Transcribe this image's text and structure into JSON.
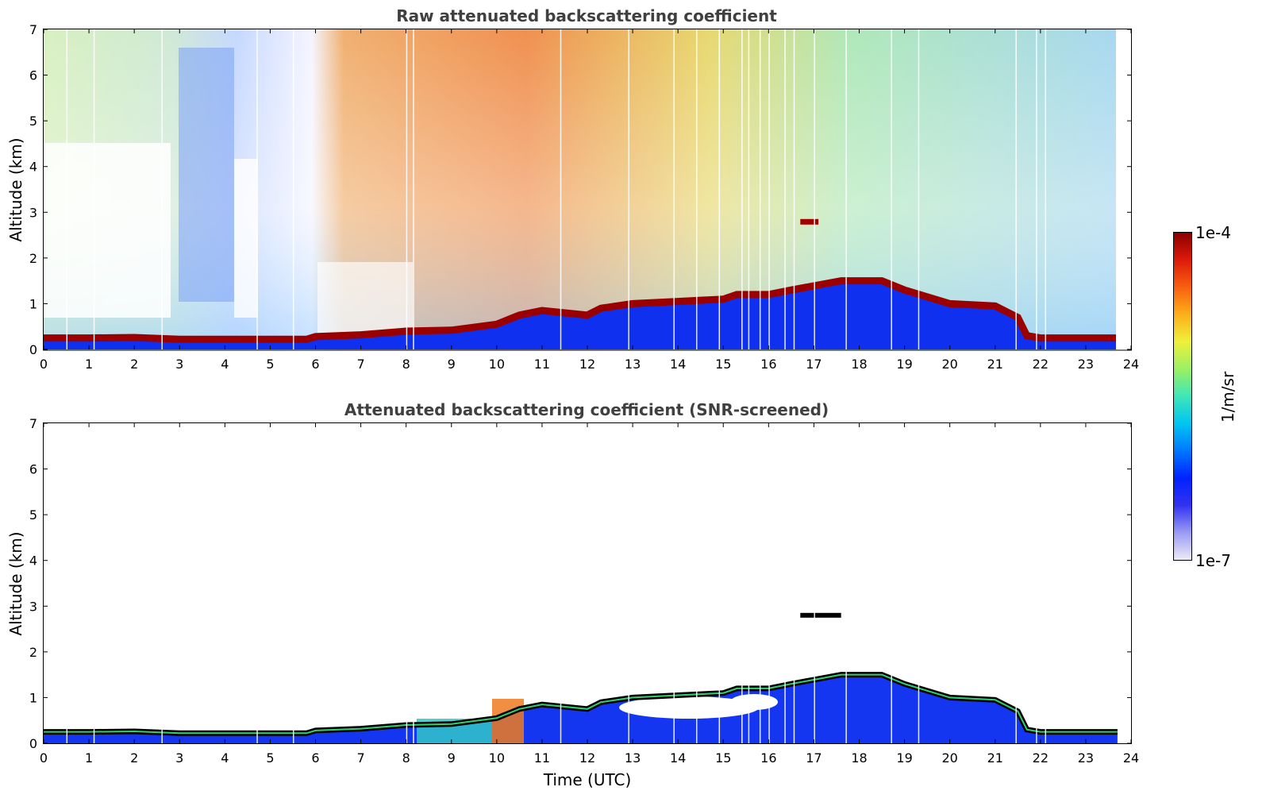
{
  "chart_data": [
    {
      "type": "heatmap",
      "title": "Raw attenuated backscattering coefficient",
      "xlabel": "",
      "ylabel": "Altitude (km)",
      "xlim": [
        0,
        24
      ],
      "ylim": [
        0,
        7
      ],
      "x_ticks": [
        "0",
        "1",
        "2",
        "3",
        "4",
        "5",
        "6",
        "7",
        "8",
        "9",
        "10",
        "11",
        "12",
        "13",
        "14",
        "15",
        "16",
        "17",
        "18",
        "19",
        "20",
        "21",
        "22",
        "23",
        "24"
      ],
      "y_ticks": [
        "0",
        "1",
        "2",
        "3",
        "4",
        "5",
        "6",
        "7"
      ],
      "data_end_time": 23.7,
      "layer_top_km": [
        [
          0,
          0.25
        ],
        [
          1,
          0.25
        ],
        [
          2,
          0.26
        ],
        [
          3,
          0.22
        ],
        [
          4,
          0.22
        ],
        [
          5,
          0.22
        ],
        [
          5.8,
          0.22
        ],
        [
          6,
          0.28
        ],
        [
          7,
          0.32
        ],
        [
          8,
          0.4
        ],
        [
          9,
          0.42
        ],
        [
          10,
          0.55
        ],
        [
          10.5,
          0.75
        ],
        [
          11,
          0.85
        ],
        [
          12,
          0.75
        ],
        [
          12.3,
          0.9
        ],
        [
          13,
          1.0
        ],
        [
          14,
          1.05
        ],
        [
          15,
          1.1
        ],
        [
          15.3,
          1.2
        ],
        [
          16,
          1.2
        ],
        [
          16.5,
          1.3
        ],
        [
          17.6,
          1.5
        ],
        [
          18.5,
          1.5
        ],
        [
          19,
          1.3
        ],
        [
          19.5,
          1.15
        ],
        [
          20,
          1.0
        ],
        [
          21,
          0.95
        ],
        [
          21.5,
          0.7
        ],
        [
          21.7,
          0.3
        ],
        [
          22,
          0.25
        ],
        [
          23.7,
          0.25
        ]
      ],
      "elevated_layer": {
        "t_start": 16.7,
        "t_end": 17.1,
        "altitude_km": 2.8
      }
    },
    {
      "type": "heatmap",
      "title": "Attenuated backscattering coefficient (SNR-screened)",
      "xlabel": "Time (UTC)",
      "ylabel": "Altitude (km)",
      "xlim": [
        0,
        24
      ],
      "ylim": [
        0,
        7
      ],
      "x_ticks": [
        "0",
        "1",
        "2",
        "3",
        "4",
        "5",
        "6",
        "7",
        "8",
        "9",
        "10",
        "11",
        "12",
        "13",
        "14",
        "15",
        "16",
        "17",
        "18",
        "19",
        "20",
        "21",
        "22",
        "23",
        "24"
      ],
      "y_ticks": [
        "0",
        "1",
        "2",
        "3",
        "4",
        "5",
        "6",
        "7"
      ],
      "data_end_time": 23.7,
      "elevated_layer": {
        "t_start": 16.7,
        "t_end": 17.6,
        "altitude_km": 2.8
      }
    }
  ],
  "colorbar": {
    "label": "1/m/sr",
    "max_label": "1e-4",
    "min_label": "1e-7",
    "colors": [
      "#ecebf5",
      "#9b9bf5",
      "#3232f0",
      "#0022ff",
      "#0077ff",
      "#00c6f0",
      "#3fe6b8",
      "#9af064",
      "#f0f03c",
      "#fbb01a",
      "#f86010",
      "#dc1a0a",
      "#8a0000"
    ]
  }
}
